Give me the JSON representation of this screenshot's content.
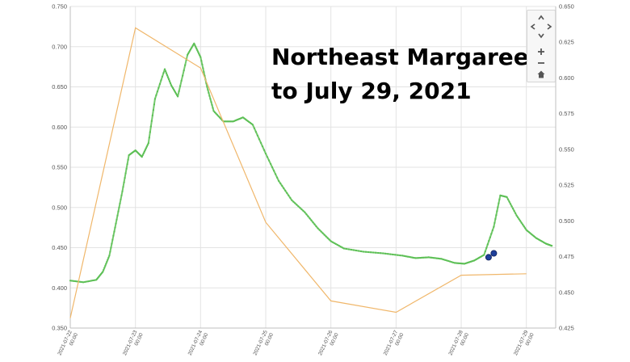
{
  "title": {
    "line1": "Northeast Margaree",
    "line2": "to July 29, 2021"
  },
  "controls": {
    "icons": [
      "pan-up-icon",
      "pan-left-icon",
      "pan-right-icon",
      "pan-down-icon",
      "zoom-in-icon",
      "zoom-out-icon",
      "home-icon"
    ]
  },
  "chart_data": {
    "type": "line",
    "title": "Northeast Margaree to July 29, 2021",
    "x_ticks": [
      {
        "value": 0,
        "label": "2021-07-22 00:00"
      },
      {
        "value": 1,
        "label": "2021-07-23 00:00"
      },
      {
        "value": 2,
        "label": "2021-07-24 00:00"
      },
      {
        "value": 3,
        "label": "2021-07-25 00:00"
      },
      {
        "value": 4,
        "label": "2021-07-26 00:00"
      },
      {
        "value": 5,
        "label": "2021-07-27 00:00"
      },
      {
        "value": 6,
        "label": "2021-07-28 00:00"
      },
      {
        "value": 7,
        "label": "2021-07-29 00:00"
      }
    ],
    "xlim": [
      0,
      7.45
    ],
    "y_left": {
      "ylim": [
        0.35,
        0.75
      ],
      "ticks": [
        "0.350",
        "0.400",
        "0.450",
        "0.500",
        "0.550",
        "0.600",
        "0.650",
        "0.700",
        "0.750"
      ]
    },
    "y_right": {
      "ylim": [
        0.425,
        0.65
      ],
      "ticks": [
        "0.425",
        "0.450",
        "0.475",
        "0.500",
        "0.525",
        "0.550",
        "0.575",
        "0.600",
        "0.625",
        "0.650"
      ]
    },
    "grid": true,
    "series": [
      {
        "color": "#73c96b",
        "axis": "left",
        "style": "dotted-line",
        "points": [
          [
            0.0,
            0.409
          ],
          [
            0.2,
            0.407
          ],
          [
            0.4,
            0.41
          ],
          [
            0.5,
            0.42
          ],
          [
            0.6,
            0.44
          ],
          [
            0.7,
            0.48
          ],
          [
            0.8,
            0.52
          ],
          [
            0.9,
            0.565
          ],
          [
            1.0,
            0.571
          ],
          [
            1.1,
            0.563
          ],
          [
            1.2,
            0.58
          ],
          [
            1.3,
            0.635
          ],
          [
            1.45,
            0.672
          ],
          [
            1.55,
            0.652
          ],
          [
            1.65,
            0.638
          ],
          [
            1.8,
            0.69
          ],
          [
            1.9,
            0.704
          ],
          [
            2.0,
            0.687
          ],
          [
            2.1,
            0.65
          ],
          [
            2.2,
            0.62
          ],
          [
            2.35,
            0.607
          ],
          [
            2.5,
            0.607
          ],
          [
            2.65,
            0.612
          ],
          [
            2.8,
            0.603
          ],
          [
            3.0,
            0.567
          ],
          [
            3.2,
            0.533
          ],
          [
            3.4,
            0.509
          ],
          [
            3.6,
            0.494
          ],
          [
            3.8,
            0.474
          ],
          [
            4.0,
            0.458
          ],
          [
            4.2,
            0.449
          ],
          [
            4.5,
            0.445
          ],
          [
            4.8,
            0.443
          ],
          [
            5.1,
            0.44
          ],
          [
            5.3,
            0.437
          ],
          [
            5.5,
            0.438
          ],
          [
            5.7,
            0.436
          ],
          [
            5.9,
            0.431
          ],
          [
            6.05,
            0.43
          ],
          [
            6.2,
            0.434
          ],
          [
            6.35,
            0.441
          ],
          [
            6.5,
            0.476
          ],
          [
            6.6,
            0.515
          ],
          [
            6.7,
            0.513
          ],
          [
            6.85,
            0.49
          ],
          [
            7.0,
            0.472
          ],
          [
            7.15,
            0.462
          ],
          [
            7.3,
            0.455
          ],
          [
            7.4,
            0.452
          ]
        ]
      },
      {
        "color": "#f0b76b",
        "axis": "right",
        "style": "line",
        "points": [
          [
            0.0,
            0.432
          ],
          [
            1.0,
            0.635
          ],
          [
            2.0,
            0.607
          ],
          [
            3.0,
            0.499
          ],
          [
            4.0,
            0.444
          ],
          [
            5.0,
            0.436
          ],
          [
            6.0,
            0.462
          ],
          [
            7.0,
            0.463
          ]
        ]
      }
    ],
    "highlight_points": {
      "color": "#1f3f9a",
      "axis": "left",
      "points": [
        [
          6.42,
          0.438
        ],
        [
          6.5,
          0.443
        ]
      ]
    }
  }
}
